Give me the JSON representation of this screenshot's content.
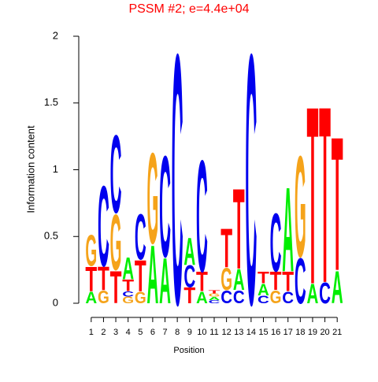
{
  "chart_data": {
    "type": "logo",
    "title": "PSSM #2; e=4.4e+04",
    "title_color": "#ff0000",
    "xlabel": "Position",
    "ylabel": "Information content",
    "categories": [
      "1",
      "2",
      "3",
      "4",
      "5",
      "6",
      "7",
      "8",
      "9",
      "10",
      "11",
      "12",
      "13",
      "14",
      "15",
      "16",
      "17",
      "18",
      "19",
      "20",
      "21"
    ],
    "ylim": [
      0,
      2
    ],
    "yticks": [
      0,
      0.5,
      1,
      1.5,
      2
    ],
    "colors": {
      "A": "#00ee00",
      "C": "#0000ee",
      "G": "#f5a31a",
      "T": "#ff0000"
    },
    "stacks": [
      [
        {
          "letter": "A",
          "value": 0.09
        },
        {
          "letter": "T",
          "value": 0.19
        },
        {
          "letter": "G",
          "value": 0.24
        }
      ],
      [
        {
          "letter": "G",
          "value": 0.1
        },
        {
          "letter": "T",
          "value": 0.18
        },
        {
          "letter": "C",
          "value": 0.62
        }
      ],
      [
        {
          "letter": "T",
          "value": 0.25
        },
        {
          "letter": "G",
          "value": 0.43
        },
        {
          "letter": "C",
          "value": 0.6
        }
      ],
      [
        {
          "letter": "G",
          "value": 0.05
        },
        {
          "letter": "C",
          "value": 0.04
        },
        {
          "letter": "T",
          "value": 0.09
        },
        {
          "letter": "A",
          "value": 0.17
        }
      ],
      [
        {
          "letter": "G",
          "value": 0.09
        },
        {
          "letter": "T",
          "value": 0.24
        },
        {
          "letter": "C",
          "value": 0.35
        }
      ],
      [
        {
          "letter": "A",
          "value": 0.45
        },
        {
          "letter": "G",
          "value": 0.7
        }
      ],
      [
        {
          "letter": "A",
          "value": 0.35
        },
        {
          "letter": "C",
          "value": 0.78
        }
      ],
      [
        {
          "letter": "C",
          "value": 1.93
        }
      ],
      [
        {
          "letter": "T",
          "value": 0.12
        },
        {
          "letter": "C",
          "value": 0.17
        },
        {
          "letter": "A",
          "value": 0.21
        }
      ],
      [
        {
          "letter": "A",
          "value": 0.09
        },
        {
          "letter": "T",
          "value": 0.15
        },
        {
          "letter": "C",
          "value": 0.86
        }
      ],
      [
        {
          "letter": "C",
          "value": 0.025
        },
        {
          "letter": "A",
          "value": 0.025
        },
        {
          "letter": "G",
          "value": 0.025
        },
        {
          "letter": "T",
          "value": 0.025
        }
      ],
      [
        {
          "letter": "C",
          "value": 0.1
        },
        {
          "letter": "G",
          "value": 0.17
        },
        {
          "letter": "T",
          "value": 0.3
        }
      ],
      [
        {
          "letter": "C",
          "value": 0.1
        },
        {
          "letter": "A",
          "value": 0.16
        },
        {
          "letter": "T",
          "value": 0.62
        }
      ],
      [
        {
          "letter": "C",
          "value": 1.93
        }
      ],
      [
        {
          "letter": "C",
          "value": 0.06
        },
        {
          "letter": "A",
          "value": 0.09
        },
        {
          "letter": "T",
          "value": 0.09
        }
      ],
      [
        {
          "letter": "G",
          "value": 0.1
        },
        {
          "letter": "T",
          "value": 0.14
        },
        {
          "letter": "C",
          "value": 0.45
        }
      ],
      [
        {
          "letter": "C",
          "value": 0.09
        },
        {
          "letter": "T",
          "value": 0.15
        },
        {
          "letter": "A",
          "value": 0.65
        }
      ],
      [
        {
          "letter": "C",
          "value": 0.35
        },
        {
          "letter": "G",
          "value": 0.78
        }
      ],
      [
        {
          "letter": "A",
          "value": 0.15
        },
        {
          "letter": "T",
          "value": 1.37
        }
      ],
      [
        {
          "letter": "C",
          "value": 0.16
        },
        {
          "letter": "T",
          "value": 1.36
        }
      ],
      [
        {
          "letter": "A",
          "value": 0.25
        },
        {
          "letter": "T",
          "value": 1.03
        }
      ]
    ]
  }
}
